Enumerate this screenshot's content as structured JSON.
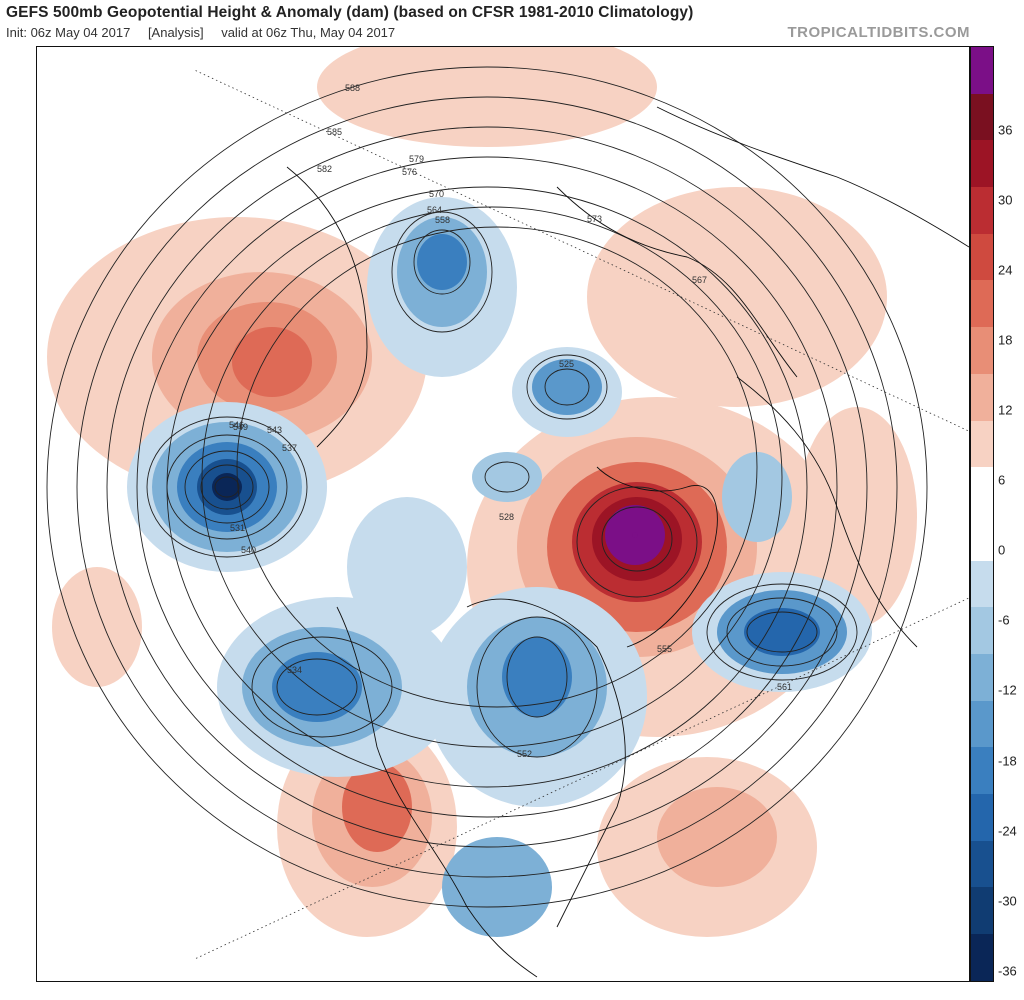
{
  "header": {
    "title": "GEFS 500mb Geopotential Height & Anomaly (dam) (based on CFSR 1981-2010 Climatology)",
    "init": "Init: 06z May 04 2017",
    "analysis": "[Analysis]",
    "valid": "valid at 06z Thu, May 04 2017",
    "brand": "TROPICALTIDBITS.COM"
  },
  "colorbar": {
    "tick_labels": [
      "36",
      "30",
      "24",
      "18",
      "12",
      "6",
      "0",
      "-6",
      "-12",
      "-18",
      "-24",
      "-30",
      "-36"
    ],
    "colors": [
      "#7b0f87",
      "#7a1020",
      "#9c1425",
      "#bb2d32",
      "#cf4a3f",
      "#de6a56",
      "#e88e76",
      "#f0b09b",
      "#f7d2c3",
      "#ffffff",
      "#ffffff",
      "#c6dced",
      "#a3c8e2",
      "#7db0d6",
      "#5a98cb",
      "#3a7fbf",
      "#2466ac",
      "#18508f",
      "#103c72",
      "#0a2657"
    ]
  },
  "map": {
    "contour_labels": [
      "588",
      "585",
      "582",
      "579",
      "576",
      "573",
      "570",
      "567",
      "564",
      "561",
      "558",
      "555",
      "552",
      "549",
      "546",
      "543",
      "540",
      "537",
      "534",
      "531",
      "528",
      "525"
    ],
    "features": [
      {
        "name": "aleutian-low",
        "kind": "negative",
        "anomaly": -36
      },
      {
        "name": "greenland-ridge",
        "kind": "positive",
        "anomaly": 36
      },
      {
        "name": "north-atlantic-low",
        "kind": "negative",
        "anomaly": -24
      },
      {
        "name": "western-us-ridge",
        "kind": "positive",
        "anomaly": 12
      },
      {
        "name": "alaska-ridge",
        "kind": "positive",
        "anomaly": 24
      }
    ]
  }
}
